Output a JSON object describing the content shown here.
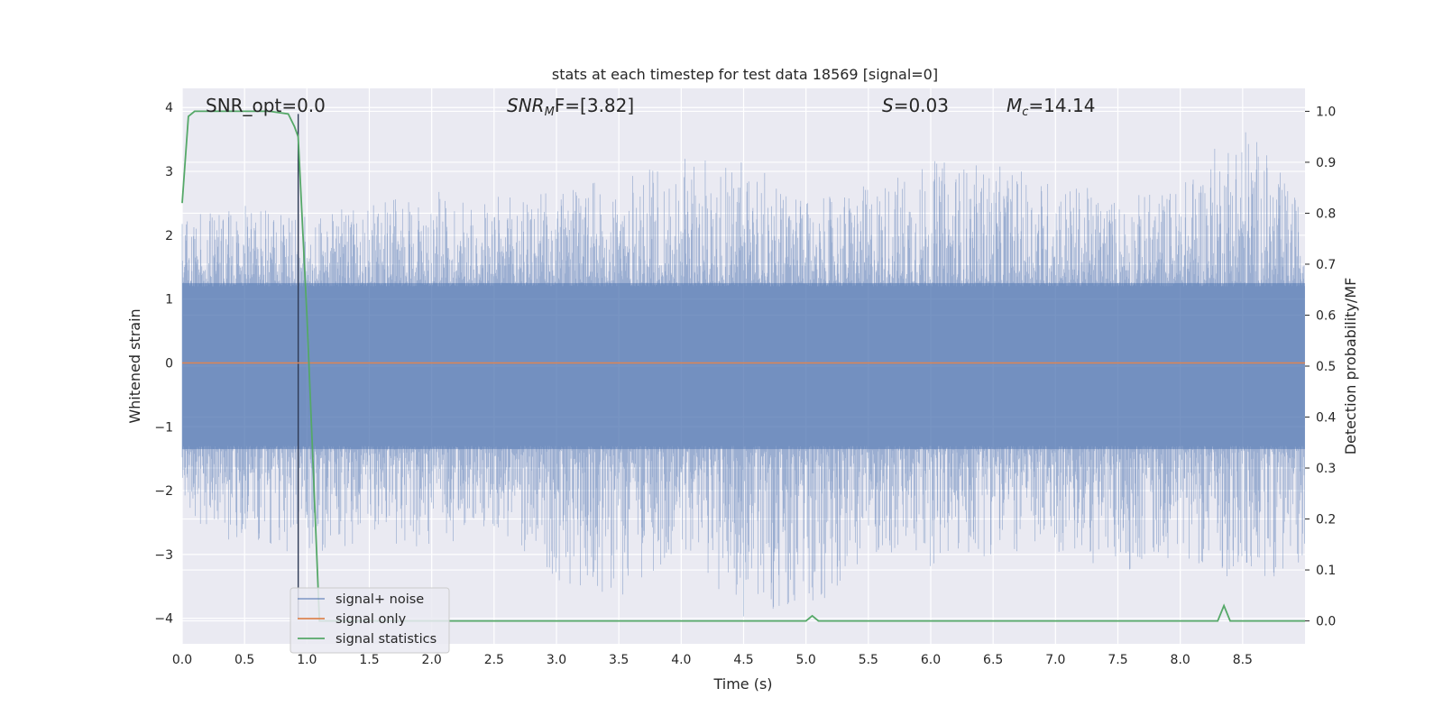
{
  "chart_data": {
    "type": "line",
    "title": "stats at each timestep for test data 18569 [signal=0]",
    "xlabel": "Time (s)",
    "ylabel": "Whitened strain",
    "ylabel_right": "Detection probability/MF",
    "xlim": [
      0.0,
      9.0
    ],
    "ylim": [
      -4.4,
      4.3
    ],
    "ylim_right": [
      -0.045,
      1.045
    ],
    "x_ticks": [
      "0.0",
      "0.5",
      "1.0",
      "1.5",
      "2.0",
      "2.5",
      "3.0",
      "3.5",
      "4.0",
      "4.5",
      "5.0",
      "5.5",
      "6.0",
      "6.5",
      "7.0",
      "7.5",
      "8.0",
      "8.5"
    ],
    "y_ticks": [
      "4",
      "3",
      "2",
      "1",
      "0",
      "−1",
      "−2",
      "−3",
      "−4"
    ],
    "y_ticks_right": [
      "1.0",
      "0.9",
      "0.8",
      "0.7",
      "0.6",
      "0.5",
      "0.4",
      "0.3",
      "0.2",
      "0.1",
      "0.0"
    ],
    "grid": true,
    "legend_position": "lower-left",
    "annotations": {
      "snr_opt": "SNR_opt=0.0",
      "snr_mf_main": "SNR",
      "snr_mf_sub": "M",
      "snr_mf_rest": "F=[3.82]",
      "s_label": "S",
      "s_value": "=0.03",
      "mc_main": "M",
      "mc_sub": "c",
      "mc_value": "=14.14"
    },
    "marker_time": 0.93,
    "series": [
      {
        "name": "signal+ noise",
        "color": "#4c72b0",
        "note": "dense whitened-noise time series spanning approx -4.0 to 3.9 over 0–9 s",
        "peak_envelope": {
          "x": [
            0.0,
            0.5,
            1.0,
            1.5,
            2.0,
            2.5,
            3.0,
            3.5,
            4.0,
            4.5,
            5.0,
            5.5,
            6.0,
            6.5,
            7.0,
            7.5,
            8.0,
            8.5,
            9.0
          ],
          "upper": [
            2.3,
            2.5,
            2.3,
            2.5,
            2.7,
            2.6,
            2.7,
            2.9,
            3.2,
            3.3,
            2.5,
            2.8,
            3.2,
            3.1,
            2.9,
            2.6,
            2.8,
            3.9,
            2.4
          ],
          "lower": [
            -2.4,
            -2.9,
            -3.0,
            -2.8,
            -2.9,
            -2.6,
            -3.4,
            -3.7,
            -2.9,
            -4.0,
            -4.0,
            -3.0,
            -3.2,
            -3.0,
            -3.0,
            -3.3,
            -3.0,
            -3.5,
            -3.2
          ]
        }
      },
      {
        "name": "signal only",
        "color": "#dd8452",
        "x": [
          0.0,
          9.0
        ],
        "y": [
          0.0,
          0.0
        ]
      },
      {
        "name": "signal statistics",
        "color": "#55a868",
        "axis": "right",
        "x": [
          0.0,
          0.05,
          0.1,
          0.2,
          0.3,
          0.5,
          0.7,
          0.85,
          0.9,
          0.93,
          1.0,
          1.05,
          1.1,
          5.0,
          5.05,
          5.1,
          5.15,
          8.3,
          8.35,
          8.4,
          8.45,
          9.0
        ],
        "y": [
          0.82,
          0.99,
          1.0,
          1.0,
          1.0,
          1.0,
          1.0,
          0.995,
          0.97,
          0.95,
          0.6,
          0.3,
          0.0,
          0.0,
          0.01,
          0.0,
          0.0,
          0.0,
          0.03,
          0.0,
          0.0,
          0.0
        ]
      }
    ]
  }
}
